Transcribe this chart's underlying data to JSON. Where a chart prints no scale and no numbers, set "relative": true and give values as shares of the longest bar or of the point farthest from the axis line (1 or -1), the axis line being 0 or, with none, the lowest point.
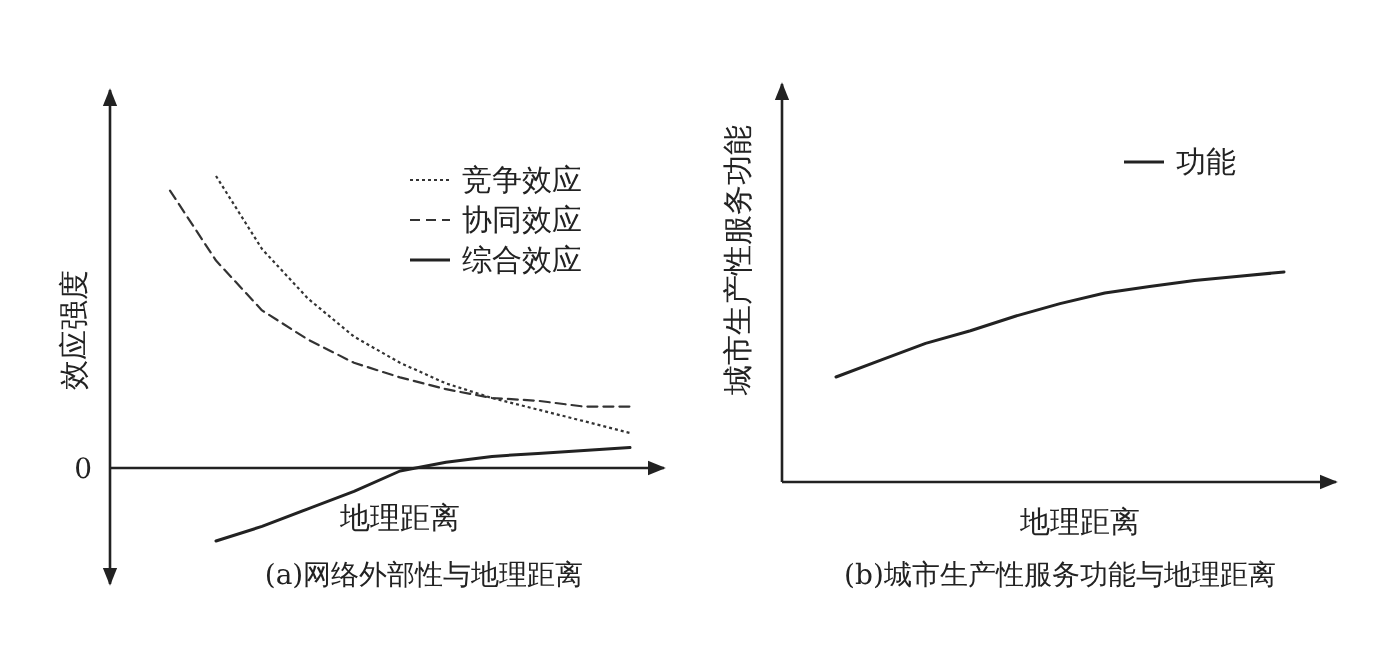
{
  "chart_data": [
    {
      "type": "line",
      "relative": true,
      "ylabel": "效应强度",
      "xlabel": "地理距离",
      "legend": "top right",
      "categories": [
        null,
        null,
        null,
        null,
        null,
        null,
        null,
        null,
        null,
        null,
        null
      ],
      "series": [
        {
          "name": "竞争效应",
          "color": "#333333",
          "line_style": "dotted",
          "values": [
            null,
            1,
            0.75,
            0.58,
            0.45,
            0.36,
            0.29,
            0.24,
            0.2,
            0.16,
            0.12
          ]
        },
        {
          "name": "协同效应",
          "color": "#333333",
          "line_style": "dashed",
          "values": [
            0.95,
            0.71,
            0.54,
            0.44,
            0.36,
            0.31,
            0.27,
            0.24,
            0.23,
            0.21,
            0.21
          ]
        },
        {
          "name": "综合效应",
          "color": "#222222",
          "line_style": "solid",
          "values": [
            null,
            -0.25,
            -0.2,
            -0.14,
            -0.08,
            -0.01,
            0.02,
            0.04,
            0.05,
            0.06,
            0.07
          ]
        }
      ],
      "annotations": [
        "0",
        "(a)网络外部性与地理距离"
      ]
    },
    {
      "type": "line",
      "relative": true,
      "ylabel": "城市生产性服务功能",
      "xlabel": "地理距离",
      "legend": "top right",
      "categories": [
        null,
        null,
        null,
        null,
        null,
        null,
        null,
        null,
        null,
        null,
        null
      ],
      "series": [
        {
          "name": "功能",
          "color": "#222222",
          "line_style": "solid",
          "values": [
            0.5,
            0.58,
            0.66,
            0.72,
            0.79,
            0.85,
            0.9,
            0.93,
            0.96,
            0.98,
            1
          ]
        }
      ],
      "annotations": [
        "(b)城市生产性服务功能与地理距离"
      ]
    }
  ]
}
